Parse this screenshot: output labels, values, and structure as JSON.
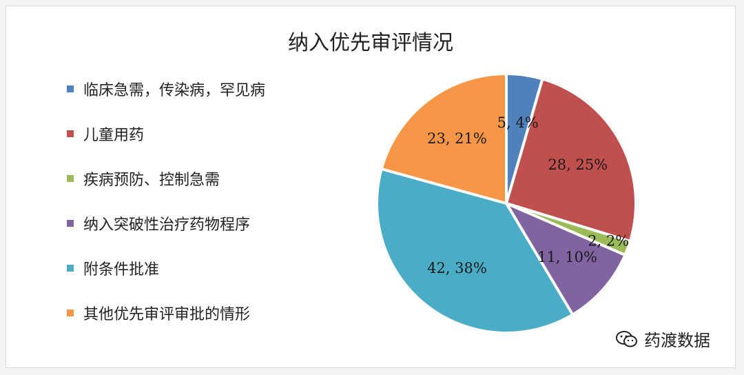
{
  "watermark": {
    "text": "药渡数据",
    "icon": "wechat-icon"
  },
  "chart_data": {
    "type": "pie",
    "title": "纳入优先审评情况",
    "legend_position": "left",
    "slices": [
      {
        "name": "临床急需，传染病，罕见病",
        "value": 5,
        "percent": 4,
        "label": "5, 4%",
        "color": "#4f81bd"
      },
      {
        "name": "儿童用药",
        "value": 28,
        "percent": 25,
        "label": "28, 25%",
        "color": "#c0504d"
      },
      {
        "name": "疾病预防、控制急需",
        "value": 2,
        "percent": 2,
        "label": "2, 2%",
        "color": "#9bbb59"
      },
      {
        "name": "纳入突破性治疗药物程序",
        "value": 11,
        "percent": 10,
        "label": "11, 10%",
        "color": "#8064a2"
      },
      {
        "name": "附条件批准",
        "value": 42,
        "percent": 38,
        "label": "42, 38%",
        "color": "#4bacc6"
      },
      {
        "name": "其他优先审评审批的情形",
        "value": 23,
        "percent": 21,
        "label": "23, 21%",
        "color": "#f79646"
      }
    ]
  }
}
